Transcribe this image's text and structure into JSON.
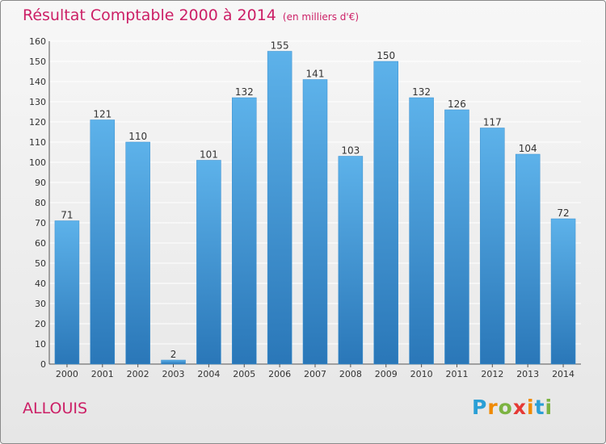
{
  "header": {
    "title": "Résultat Comptable 2000 à 2014",
    "unit": "(en milliers d'€)"
  },
  "footer": {
    "commune": "ALLOUIS",
    "logo_letters": [
      "P",
      "r",
      "o",
      "x",
      "i",
      "t",
      "i"
    ],
    "logo_colors": [
      "#2a9fd6",
      "#f08a00",
      "#7cb342",
      "#e53935",
      "#f08a00",
      "#2a9fd6",
      "#7cb342"
    ]
  },
  "colors": {
    "title": "#cc1f66",
    "bar_top": "#5db2ea",
    "bar_bottom": "#2a77b8",
    "grid": "#ffffff"
  },
  "chart_data": {
    "type": "bar",
    "title": "Résultat Comptable 2000 à 2014",
    "xlabel": "",
    "ylabel": "",
    "ylim": [
      0,
      160
    ],
    "yticks": [
      0,
      10,
      20,
      30,
      40,
      50,
      60,
      70,
      80,
      90,
      100,
      110,
      120,
      130,
      140,
      150,
      160
    ],
    "grid": true,
    "categories": [
      "2000",
      "2001",
      "2002",
      "2003",
      "2004",
      "2005",
      "2006",
      "2007",
      "2008",
      "2009",
      "2010",
      "2011",
      "2012",
      "2013",
      "2014"
    ],
    "values": [
      71,
      121,
      110,
      2,
      101,
      132,
      155,
      141,
      103,
      150,
      132,
      126,
      117,
      104,
      72
    ]
  }
}
